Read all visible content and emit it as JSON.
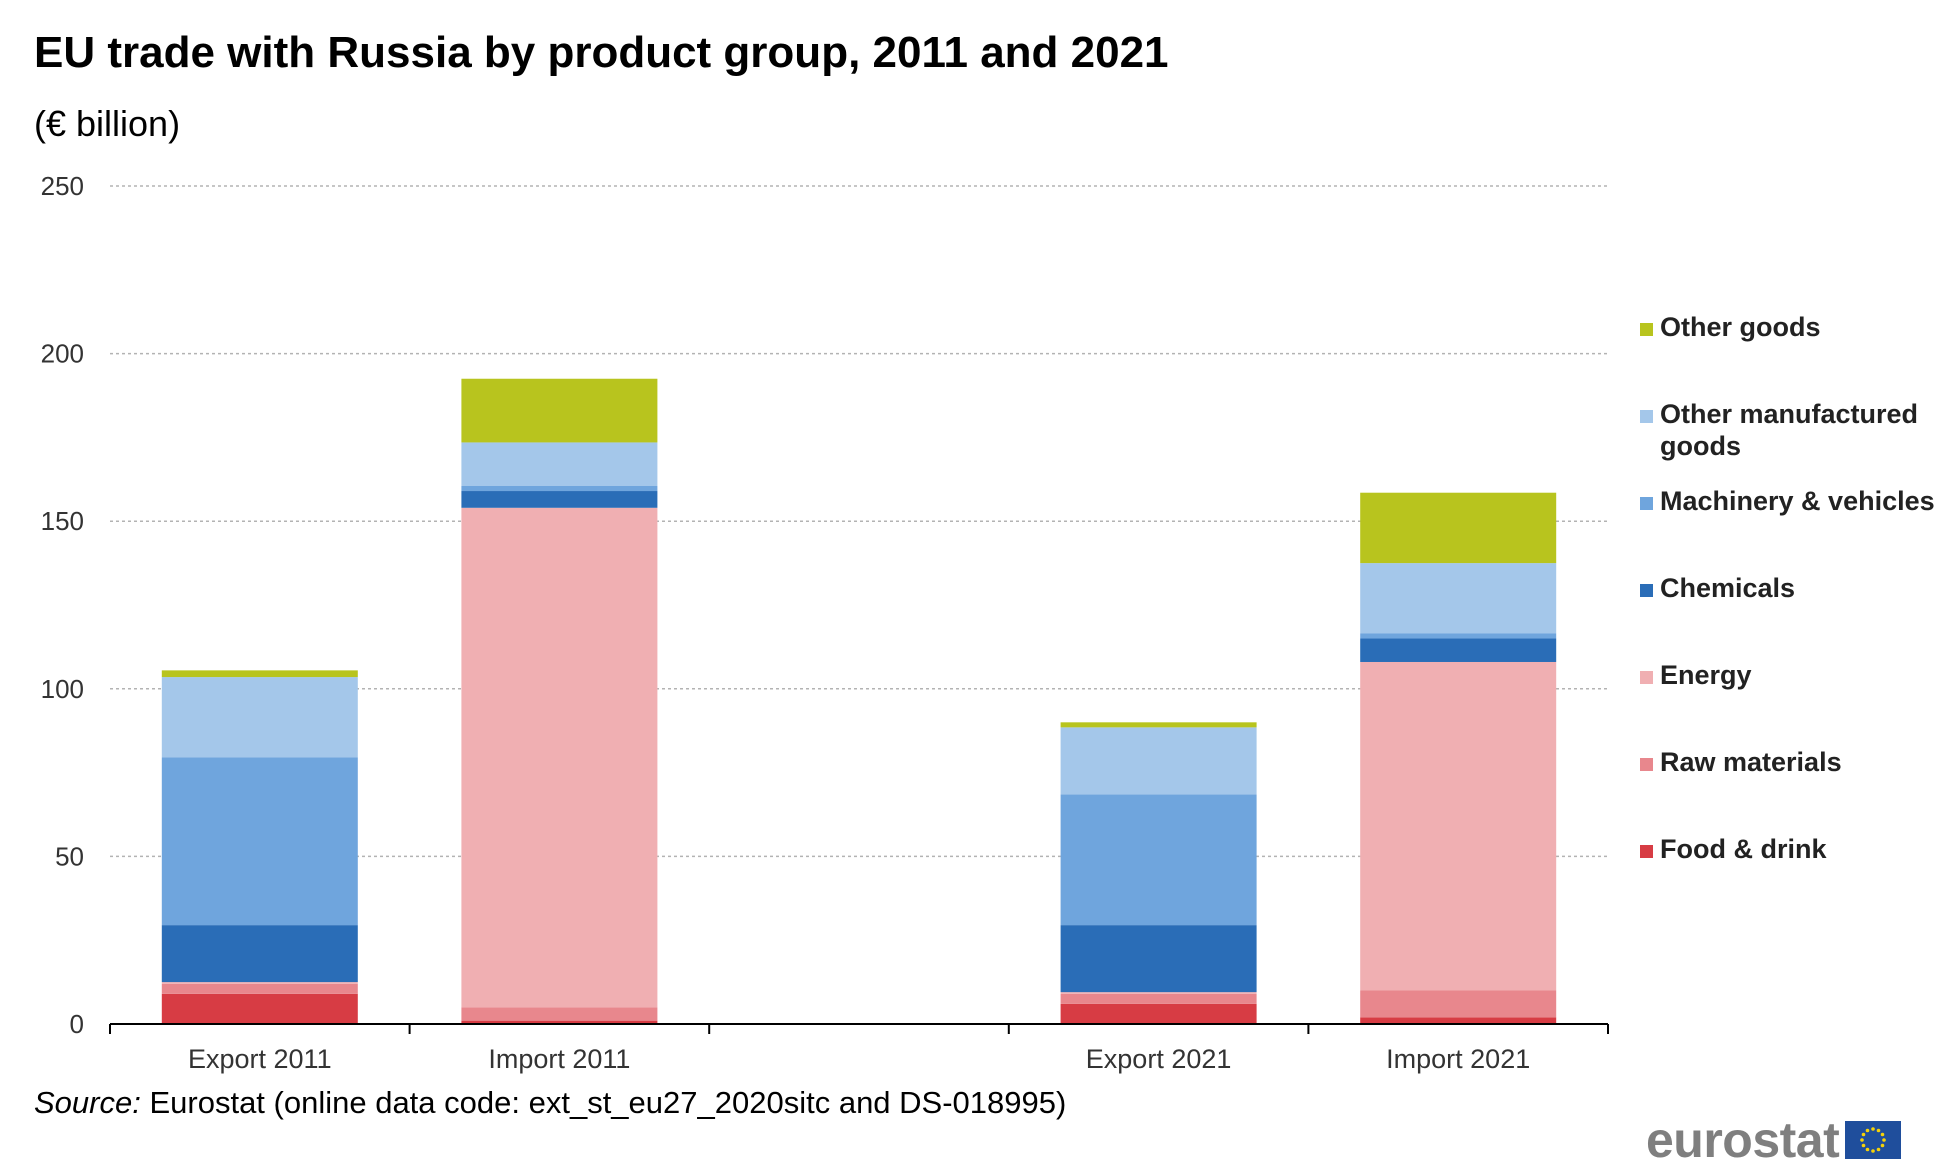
{
  "title": "EU trade with Russia by product group, 2011 and 2021",
  "subtitle": "(€ billion)",
  "source": {
    "label": "Source:",
    "text": "Eurostat (online data code: ext_st_eu27_2020sitc and DS-018995)"
  },
  "logo": {
    "text": "eurostat",
    "icon": "eu-flag-icon"
  },
  "chart_data": {
    "type": "bar",
    "stacked": true,
    "title": "EU trade with Russia by product group, 2011 and 2021",
    "ylabel": "€ billion",
    "ylim": [
      0,
      250
    ],
    "yticks": [
      0,
      50,
      100,
      150,
      200,
      250
    ],
    "grid": true,
    "legend_position": "right",
    "categories": [
      "Export 2011",
      "Import 2011",
      "Export 2021",
      "Import 2021"
    ],
    "category_slots": [
      0,
      1,
      3,
      4
    ],
    "slot_count": 5,
    "series": [
      {
        "name": "Food & drink",
        "color": "#d73c44",
        "values": [
          9,
          1,
          6,
          2
        ]
      },
      {
        "name": "Raw materials",
        "color": "#e8878d",
        "values": [
          3,
          4,
          3,
          8
        ]
      },
      {
        "name": "Energy",
        "color": "#f0afb2",
        "values": [
          0.5,
          149,
          0.5,
          98
        ]
      },
      {
        "name": "Chemicals",
        "color": "#2a6db7",
        "values": [
          17,
          5,
          20,
          7
        ]
      },
      {
        "name": "Machinery & vehicles",
        "color": "#6fa5dd",
        "values": [
          50,
          1.5,
          39,
          1.5
        ]
      },
      {
        "name": "Other manufactured goods",
        "color": "#a4c7ea",
        "values": [
          24,
          13,
          20,
          21
        ]
      },
      {
        "name": "Other goods",
        "color": "#b8c41e",
        "values": [
          2,
          19,
          1.5,
          21
        ]
      }
    ]
  }
}
